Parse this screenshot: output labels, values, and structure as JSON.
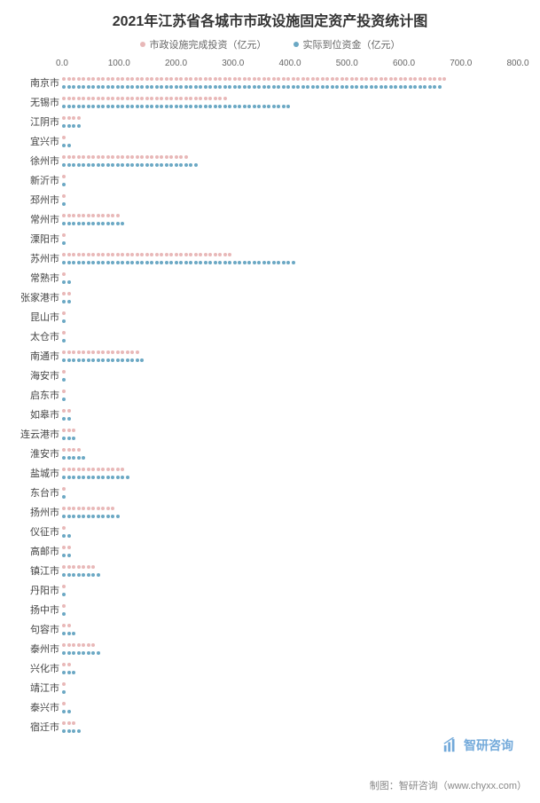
{
  "title": "2021年江苏省各城市市政设施固定资产投资统计图",
  "legend": {
    "series1": "市政设施完成投资（亿元）",
    "series2": "实际到位资金（亿元）"
  },
  "colors": {
    "series1": "#e8b8b8",
    "series2": "#6ba8c4",
    "background": "#ffffff",
    "text": "#333333",
    "axis_text": "#666666",
    "watermark_box": "#5a9bd4",
    "watermark_text": "#5a9bd4"
  },
  "x_axis": {
    "min": 0,
    "max": 800,
    "ticks": [
      0.0,
      100.0,
      200.0,
      300.0,
      400.0,
      500.0,
      600.0,
      700.0,
      800.0
    ],
    "tick_labels": [
      "0.0",
      "100.0",
      "200.0",
      "300.0",
      "400.0",
      "500.0",
      "600.0",
      "700.0",
      "800.0"
    ]
  },
  "categories": [
    "南京市",
    "无锡市",
    "江阴市",
    "宜兴市",
    "徐州市",
    "新沂市",
    "邳州市",
    "常州市",
    "溧阳市",
    "苏州市",
    "常熟市",
    "张家港市",
    "昆山市",
    "太仓市",
    "南通市",
    "海安市",
    "启东市",
    "如皋市",
    "连云港市",
    "淮安市",
    "盐城市",
    "东台市",
    "扬州市",
    "仪征市",
    "高邮市",
    "镇江市",
    "丹阳市",
    "扬中市",
    "句容市",
    "泰州市",
    "兴化市",
    "靖江市",
    "泰兴市",
    "宿迁市"
  ],
  "series1_values": [
    660,
    280,
    30,
    12,
    220,
    8,
    5,
    100,
    8,
    290,
    12,
    18,
    10,
    10,
    130,
    10,
    8,
    15,
    25,
    35,
    110,
    10,
    95,
    12,
    15,
    60,
    8,
    10,
    20,
    60,
    20,
    10,
    12,
    25
  ],
  "series2_values": [
    650,
    390,
    35,
    15,
    230,
    8,
    5,
    110,
    10,
    400,
    15,
    20,
    12,
    12,
    140,
    12,
    10,
    18,
    28,
    40,
    120,
    12,
    100,
    15,
    18,
    70,
    10,
    12,
    22,
    65,
    25,
    12,
    15,
    30
  ],
  "dot_style": {
    "diameter": 4,
    "spacing": 5.5
  },
  "watermark": {
    "text": "智研咨询",
    "icon_color": "#5a9bd4"
  },
  "footer": "制图：智研咨询（www.chyxx.com）"
}
